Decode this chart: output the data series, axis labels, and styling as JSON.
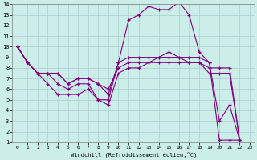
{
  "xlabel": "Windchill (Refroidissement éolien,°C)",
  "background_color": "#cceee8",
  "line_color": "#800080",
  "grid_color": "#aacccc",
  "xlim": [
    -0.5,
    23.5
  ],
  "ylim": [
    1,
    14
  ],
  "xticks": [
    0,
    1,
    2,
    3,
    4,
    5,
    6,
    7,
    8,
    9,
    10,
    11,
    12,
    13,
    14,
    15,
    16,
    17,
    18,
    19,
    20,
    21,
    22,
    23
  ],
  "yticks": [
    1,
    2,
    3,
    4,
    5,
    6,
    7,
    8,
    9,
    10,
    11,
    12,
    13,
    14
  ],
  "series": [
    {
      "x": [
        0,
        1,
        2,
        3,
        4,
        5,
        6,
        7,
        8,
        9,
        10,
        11,
        12,
        13,
        14,
        15,
        16,
        17,
        18,
        19,
        20,
        21,
        22,
        23
      ],
      "y": [
        10,
        8.5,
        7.5,
        7.5,
        6.5,
        6.0,
        6.5,
        6.5,
        5.0,
        5.0,
        8.5,
        12.5,
        13.0,
        13.8,
        13.5,
        13.5,
        14.2,
        13.0,
        9.5,
        8.5,
        3.0,
        4.5,
        1.2,
        null
      ]
    },
    {
      "x": [
        0,
        1,
        2,
        3,
        4,
        5,
        6,
        7,
        8,
        9,
        10,
        11,
        12,
        13,
        14,
        15,
        16,
        17,
        18,
        19,
        20,
        21,
        22,
        23
      ],
      "y": [
        10,
        8.5,
        7.5,
        7.5,
        7.5,
        6.5,
        7.0,
        7.0,
        6.5,
        6.0,
        8.0,
        8.5,
        8.5,
        8.5,
        9.0,
        9.5,
        9.0,
        8.5,
        8.5,
        8.0,
        8.0,
        8.0,
        1.2,
        null
      ]
    },
    {
      "x": [
        0,
        1,
        2,
        3,
        4,
        5,
        6,
        7,
        8,
        9,
        10,
        11,
        12,
        13,
        14,
        15,
        16,
        17,
        18,
        19,
        20,
        21,
        22,
        23
      ],
      "y": [
        10,
        8.5,
        7.5,
        7.5,
        7.5,
        6.5,
        7.0,
        7.0,
        6.5,
        5.5,
        8.5,
        9.0,
        9.0,
        9.0,
        9.0,
        9.0,
        9.0,
        9.0,
        9.0,
        8.5,
        1.2,
        1.2,
        1.2,
        null
      ]
    },
    {
      "x": [
        0,
        1,
        2,
        3,
        4,
        5,
        6,
        7,
        8,
        9,
        10,
        11,
        12,
        13,
        14,
        15,
        16,
        17,
        18,
        19,
        20,
        21,
        22,
        23
      ],
      "y": [
        10,
        8.5,
        7.5,
        6.5,
        5.5,
        5.5,
        5.5,
        6.0,
        5.0,
        4.5,
        7.5,
        8.0,
        8.0,
        8.5,
        8.5,
        8.5,
        8.5,
        8.5,
        8.5,
        7.5,
        7.5,
        7.5,
        1.2,
        null
      ]
    }
  ]
}
